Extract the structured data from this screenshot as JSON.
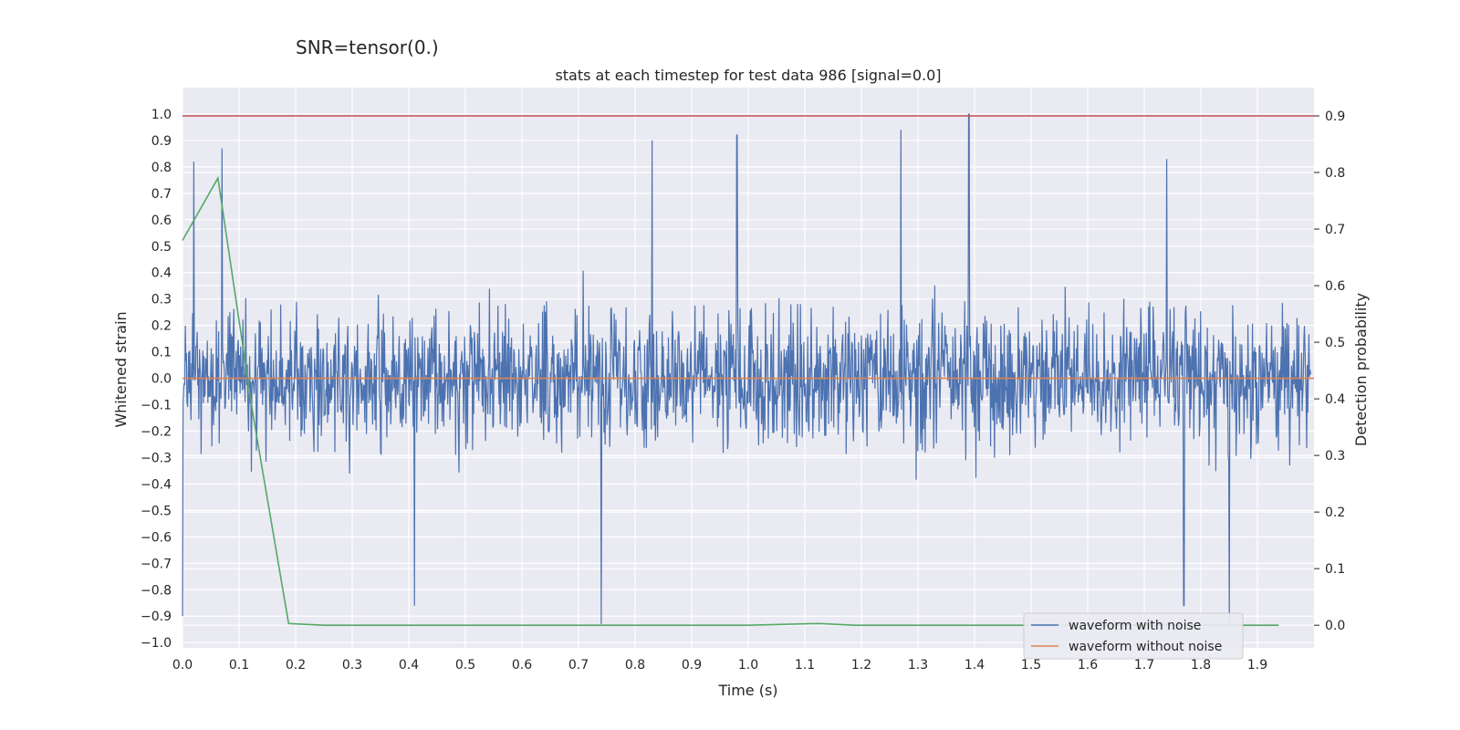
{
  "figure": {
    "suptitle": "SNR=tensor(0.)"
  },
  "chart_data": {
    "type": "line",
    "title": "stats at each timestep for test data 986 [signal=0.0]",
    "xlabel": "Time (s)",
    "ylabel": "Whitened strain",
    "ylabel_right": "Detection probability",
    "xlim": [
      0.0,
      2.0
    ],
    "ylim": [
      -1.02,
      1.1
    ],
    "ylim_right": [
      -0.04,
      0.95
    ],
    "x_ticks": [
      "0.0",
      "0.1",
      "0.2",
      "0.3",
      "0.4",
      "0.5",
      "0.6",
      "0.7",
      "0.8",
      "0.9",
      "1.0",
      "1.1",
      "1.2",
      "1.3",
      "1.4",
      "1.5",
      "1.6",
      "1.7",
      "1.8",
      "1.9"
    ],
    "y_ticks": [
      "1.0",
      "0.9",
      "0.8",
      "0.7",
      "0.6",
      "0.5",
      "0.4",
      "0.3",
      "0.2",
      "0.1",
      "0.0",
      "−0.1",
      "−0.2",
      "−0.3",
      "−0.4",
      "−0.5",
      "−0.6",
      "−0.7",
      "−0.8",
      "−0.9",
      "−1.0"
    ],
    "y_ticks_right": [
      "0.9",
      "0.8",
      "0.7",
      "0.6",
      "0.5",
      "0.4",
      "0.3",
      "0.2",
      "0.1",
      "0.0"
    ],
    "grid": true,
    "legend_position": "lower-right",
    "series": [
      {
        "name": "waveform with noise",
        "axis": "left",
        "color": "#4c72b0",
        "description_points": [
          {
            "x": 0.0,
            "y": -0.9
          },
          {
            "x": 0.02,
            "y": 0.82
          },
          {
            "x": 0.07,
            "y": 0.87
          },
          {
            "x": 0.41,
            "y": -0.86
          },
          {
            "x": 0.74,
            "y": -0.93
          },
          {
            "x": 0.83,
            "y": 0.9
          },
          {
            "x": 0.98,
            "y": 0.92
          },
          {
            "x": 1.27,
            "y": 0.94
          },
          {
            "x": 1.39,
            "y": 1.0
          },
          {
            "x": 1.74,
            "y": 0.83
          },
          {
            "x": 1.77,
            "y": -0.86
          },
          {
            "x": 1.85,
            "y": -0.93
          }
        ],
        "amplitude_range": [
          -1.0,
          1.0
        ]
      },
      {
        "name": "waveform without noise",
        "axis": "left",
        "color": "#dd8452",
        "x": [
          0.0,
          2.0
        ],
        "y": [
          0.0,
          0.0
        ]
      },
      {
        "name": "",
        "axis": "right",
        "color": "#55a868",
        "x": [
          0.0,
          0.0625,
          0.125,
          0.1875,
          0.25,
          0.5,
          0.75,
          1.0,
          1.125,
          1.1875,
          1.25,
          1.5,
          1.75,
          1.9375
        ],
        "y": [
          0.68,
          0.79,
          0.37,
          0.003,
          0.0,
          0.0,
          0.0,
          0.0,
          0.003,
          0.0,
          0.0,
          0.0,
          0.0,
          0.0
        ]
      },
      {
        "name": "",
        "axis": "right",
        "color": "#c44e52",
        "x": [
          0.0,
          2.0
        ],
        "y": [
          0.9,
          0.9
        ]
      }
    ]
  }
}
